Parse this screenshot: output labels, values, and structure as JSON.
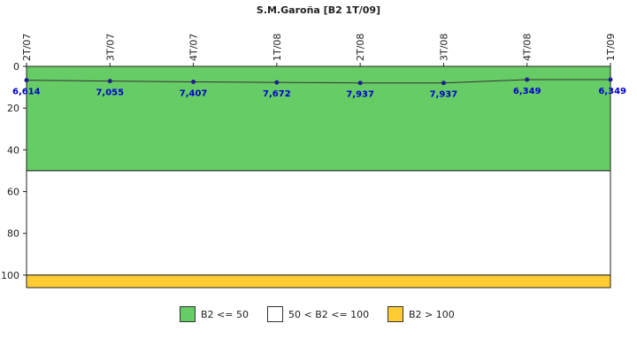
{
  "chart_data": {
    "type": "line",
    "title": "S.M.Garoña [B2 1T/09]",
    "xlabel": "",
    "ylabel": "",
    "categories": [
      "2T/07",
      "3T/07",
      "4T/07",
      "1T/08",
      "2T/08",
      "3T/08",
      "4T/08",
      "1T/09"
    ],
    "series": [
      {
        "values": [
          6.614,
          7.055,
          7.407,
          7.672,
          7.937,
          7.937,
          6.349,
          6.349
        ],
        "labels": [
          "6,614",
          "7,055",
          "7,407",
          "7,672",
          "7,937",
          "7,937",
          "6,349",
          "6,349"
        ],
        "color": "#1f1f8f"
      }
    ],
    "ylim": [
      0,
      106
    ],
    "y_inverted": true,
    "yticks": [
      0,
      20,
      40,
      60,
      80,
      100
    ],
    "bands": [
      {
        "from": 0,
        "to": 50,
        "color": "#66cc66",
        "label": "B2 <= 50"
      },
      {
        "from": 50,
        "to": 100,
        "color": "#ffffff",
        "label": "50 < B2 <= 100"
      },
      {
        "from": 100,
        "to": 106,
        "color": "#ffcc33",
        "label": "B2 > 100"
      }
    ],
    "legend_position": "bottom",
    "grid": false
  }
}
